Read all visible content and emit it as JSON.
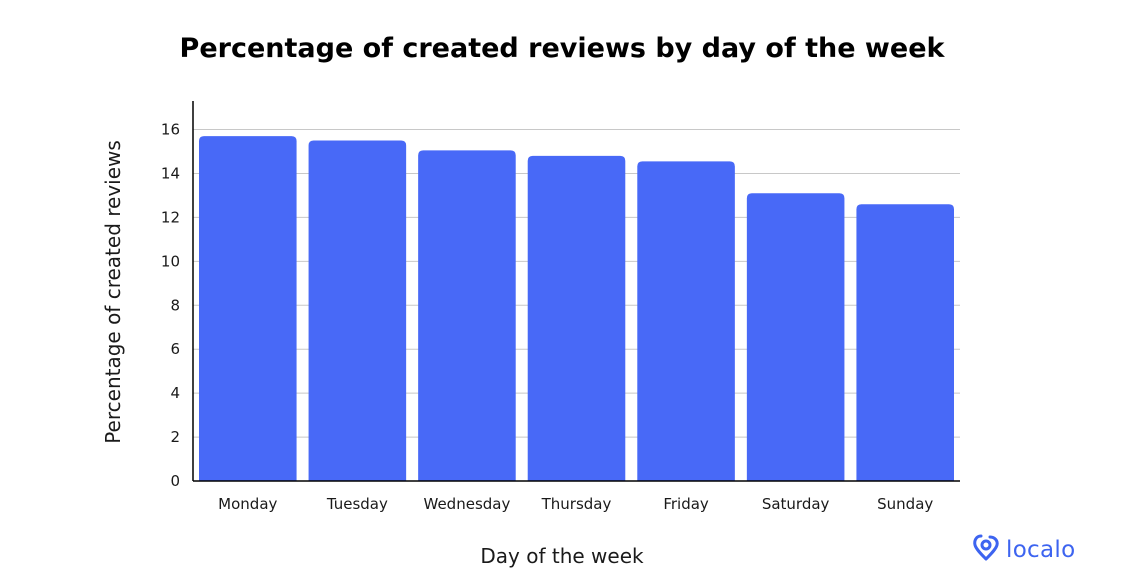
{
  "chart_data": {
    "type": "bar",
    "title": "Percentage of created reviews by day of the week",
    "xlabel": "Day of the week",
    "ylabel": "Percentage of created reviews",
    "categories": [
      "Monday",
      "Tuesday",
      "Wednesday",
      "Thursday",
      "Friday",
      "Saturday",
      "Sunday"
    ],
    "values": [
      15.7,
      15.5,
      15.05,
      14.8,
      14.55,
      13.1,
      12.6
    ],
    "ylim": [
      0,
      17.3
    ],
    "yticks": [
      "0",
      "2",
      "4",
      "6",
      "8",
      "10",
      "12",
      "14",
      "16"
    ],
    "grid": true,
    "bar_color": "#4869f7"
  },
  "brand": {
    "name": "localo",
    "color": "#3d64f0",
    "icon": "location-pin-icon"
  }
}
